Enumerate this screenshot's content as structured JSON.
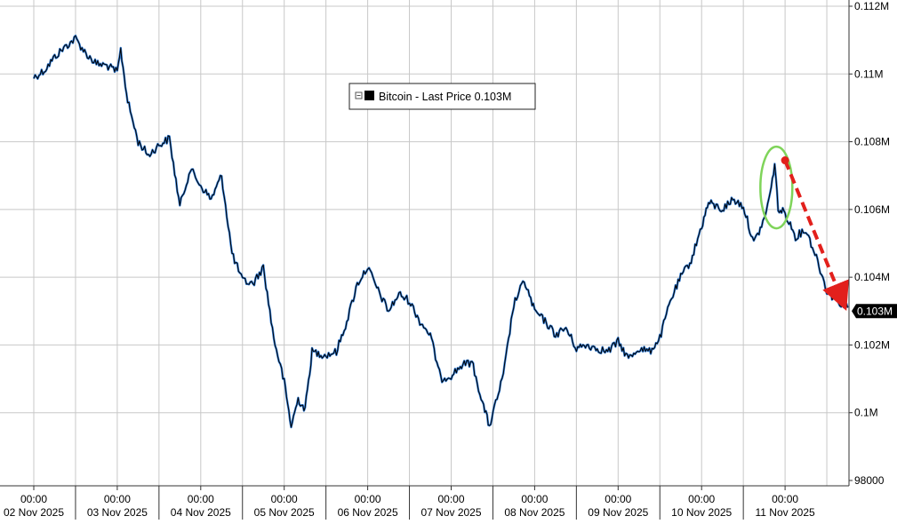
{
  "chart_data": {
    "type": "line",
    "title": "",
    "xlabel": "",
    "ylabel": "",
    "ylim": [
      98000,
      112000
    ],
    "y_ticks": [
      {
        "value": 112000,
        "label": "0.112M"
      },
      {
        "value": 110000,
        "label": "0.11M"
      },
      {
        "value": 108000,
        "label": "0.108M"
      },
      {
        "value": 106000,
        "label": "0.106M"
      },
      {
        "value": 104000,
        "label": "0.104M"
      },
      {
        "value": 102000,
        "label": "0.102M"
      },
      {
        "value": 100000,
        "label": "0.1M"
      },
      {
        "value": 98000,
        "label": "98000"
      }
    ],
    "x_ticks": [
      {
        "time": "00:00",
        "date": "02 Nov 2025"
      },
      {
        "time": "00:00",
        "date": "03 Nov 2025"
      },
      {
        "time": "00:00",
        "date": "04 Nov 2025"
      },
      {
        "time": "00:00",
        "date": "05 Nov 2025"
      },
      {
        "time": "00:00",
        "date": "06 Nov 2025"
      },
      {
        "time": "00:00",
        "date": "07 Nov 2025"
      },
      {
        "time": "00:00",
        "date": "08 Nov 2025"
      },
      {
        "time": "00:00",
        "date": "09 Nov 2025"
      },
      {
        "time": "00:00",
        "date": "10 Nov 2025"
      },
      {
        "time": "00:00",
        "date": "11 Nov 2025"
      }
    ],
    "legend": {
      "text": "Bitcoin - Last Price 0.103M",
      "placement": "top-center"
    },
    "last_price": {
      "label": "0.103M",
      "value": 103000
    },
    "grid": true,
    "colors": {
      "line_dark": "#000000",
      "line_blue": "#2f7bd6",
      "circle": "#7fd45a",
      "arrow": "#e2201c",
      "grid": "#c8c8c8",
      "tag_bg": "#000000"
    },
    "series": [
      {
        "name": "Bitcoin - Last Price",
        "points": [
          [
            "02 Nov 00:00",
            109900
          ],
          [
            "02 Nov 03:00",
            110100
          ],
          [
            "02 Nov 06:00",
            110500
          ],
          [
            "02 Nov 09:00",
            110800
          ],
          [
            "02 Nov 12:00",
            111050
          ],
          [
            "02 Nov 15:00",
            110600
          ],
          [
            "02 Nov 18:00",
            110300
          ],
          [
            "02 Nov 21:00",
            110250
          ],
          [
            "03 Nov 00:00",
            110050
          ],
          [
            "03 Nov 01:00",
            110700
          ],
          [
            "03 Nov 03:00",
            109200
          ],
          [
            "03 Nov 06:00",
            108000
          ],
          [
            "03 Nov 09:00",
            107600
          ],
          [
            "03 Nov 12:00",
            107900
          ],
          [
            "03 Nov 15:00",
            108100
          ],
          [
            "03 Nov 18:00",
            106100
          ],
          [
            "03 Nov 21:00",
            107200
          ],
          [
            "04 Nov 00:00",
            106700
          ],
          [
            "04 Nov 03:00",
            106300
          ],
          [
            "04 Nov 06:00",
            107000
          ],
          [
            "04 Nov 09:00",
            104700
          ],
          [
            "04 Nov 12:00",
            103900
          ],
          [
            "04 Nov 15:00",
            103800
          ],
          [
            "04 Nov 18:00",
            104300
          ],
          [
            "04 Nov 21:00",
            102200
          ],
          [
            "05 Nov 00:00",
            100900
          ],
          [
            "05 Nov 02:00",
            99600
          ],
          [
            "05 Nov 04:00",
            100400
          ],
          [
            "05 Nov 06:00",
            100100
          ],
          [
            "05 Nov 08:00",
            101800
          ],
          [
            "05 Nov 12:00",
            101700
          ],
          [
            "05 Nov 15:00",
            101800
          ],
          [
            "05 Nov 18:00",
            102700
          ],
          [
            "05 Nov 21:00",
            103800
          ],
          [
            "06 Nov 00:00",
            104300
          ],
          [
            "06 Nov 03:00",
            103600
          ],
          [
            "06 Nov 06:00",
            103000
          ],
          [
            "06 Nov 09:00",
            103500
          ],
          [
            "06 Nov 12:00",
            103300
          ],
          [
            "06 Nov 15:00",
            102700
          ],
          [
            "06 Nov 18:00",
            102300
          ],
          [
            "06 Nov 21:00",
            101000
          ],
          [
            "07 Nov 00:00",
            101100
          ],
          [
            "07 Nov 03:00",
            101400
          ],
          [
            "07 Nov 06:00",
            101500
          ],
          [
            "07 Nov 09:00",
            100300
          ],
          [
            "07 Nov 11:00",
            99600
          ],
          [
            "07 Nov 15:00",
            101100
          ],
          [
            "07 Nov 18:00",
            103200
          ],
          [
            "07 Nov 21:00",
            103900
          ],
          [
            "08 Nov 00:00",
            103000
          ],
          [
            "08 Nov 03:00",
            102700
          ],
          [
            "08 Nov 06:00",
            102300
          ],
          [
            "08 Nov 09:00",
            102500
          ],
          [
            "08 Nov 12:00",
            101900
          ],
          [
            "08 Nov 15:00",
            102000
          ],
          [
            "08 Nov 18:00",
            101900
          ],
          [
            "08 Nov 21:00",
            101800
          ],
          [
            "09 Nov 00:00",
            102100
          ],
          [
            "09 Nov 03:00",
            101600
          ],
          [
            "09 Nov 06:00",
            101900
          ],
          [
            "09 Nov 09:00",
            101800
          ],
          [
            "09 Nov 12:00",
            102200
          ],
          [
            "09 Nov 15:00",
            103300
          ],
          [
            "09 Nov 18:00",
            104000
          ],
          [
            "09 Nov 21:00",
            104500
          ],
          [
            "10 Nov 00:00",
            105500
          ],
          [
            "10 Nov 02:00",
            106200
          ],
          [
            "10 Nov 06:00",
            106000
          ],
          [
            "10 Nov 09:00",
            106300
          ],
          [
            "10 Nov 12:00",
            106100
          ],
          [
            "10 Nov 15:00",
            105000
          ],
          [
            "10 Nov 18:00",
            105700
          ],
          [
            "10 Nov 20:00",
            106600
          ],
          [
            "10 Nov 21:00",
            107400
          ],
          [
            "10 Nov 22:00",
            106000
          ],
          [
            "11 Nov 00:00",
            105900
          ],
          [
            "11 Nov 03:00",
            105200
          ],
          [
            "11 Nov 06:00",
            105400
          ],
          [
            "11 Nov 09:00",
            104600
          ],
          [
            "11 Nov 12:00",
            103600
          ],
          [
            "11 Nov 15:00",
            103300
          ],
          [
            "11 Nov 18:00",
            103100
          ]
        ]
      }
    ]
  }
}
